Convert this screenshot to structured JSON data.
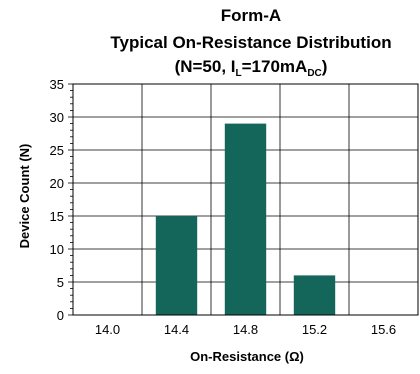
{
  "chart_data": {
    "type": "bar",
    "title_line1": "Form-A",
    "title_line2": "Typical On-Resistance Distribution",
    "subtitle": {
      "open": "(N=50, I",
      "sub1": "L",
      "mid": "=170mA",
      "sub2": "DC",
      "close": ")"
    },
    "xlabel": "On-Resistance (Ω)",
    "ylabel": "Device Count (N)",
    "x_ticks": [
      "14.0",
      "14.4",
      "14.8",
      "15.2",
      "15.6"
    ],
    "y_ticks": [
      "0",
      "5",
      "10",
      "15",
      "20",
      "25",
      "30",
      "35"
    ],
    "ylim": [
      0,
      35
    ],
    "y_major_step": 5,
    "y_minor_step": 1,
    "grid": true,
    "bar_color": "#15665a",
    "bars": [
      {
        "x": 14.4,
        "value": 15
      },
      {
        "x": 14.8,
        "value": 29
      },
      {
        "x": 15.2,
        "value": 6
      }
    ]
  }
}
